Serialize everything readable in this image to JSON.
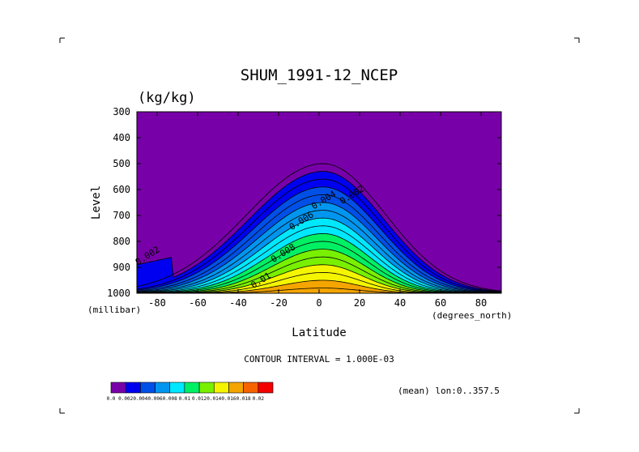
{
  "chart_data": {
    "type": "contour",
    "title": "SHUM_1991-12_NCEP",
    "units": "(kg/kg)",
    "xlabel": "Latitude",
    "ylabel": "Level",
    "x_unit_label": "(degrees_north)",
    "y_unit_label": "(millibar)",
    "xlim": [
      -90,
      90
    ],
    "ylim": [
      1000,
      300
    ],
    "x_ticks": [
      "-80",
      "-60",
      "-40",
      "-20",
      "0",
      "20",
      "40",
      "60",
      "80"
    ],
    "x_tick_values": [
      -80,
      -60,
      -40,
      -20,
      0,
      20,
      40,
      60,
      80
    ],
    "y_ticks": [
      "300",
      "400",
      "500",
      "600",
      "700",
      "800",
      "900",
      "1000"
    ],
    "y_tick_values": [
      300,
      400,
      500,
      600,
      700,
      800,
      900,
      1000
    ],
    "contour_interval_text": "CONTOUR INTERVAL = 1.000E-03",
    "mean_text": "(mean) lon:0..357.5",
    "contour_labels": [
      {
        "text": "0.002",
        "lat": 17,
        "level": 630
      },
      {
        "text": "0.002",
        "lat": -84,
        "level": 865
      },
      {
        "text": "0.004",
        "lat": 3,
        "level": 650
      },
      {
        "text": "0.006",
        "lat": -8,
        "level": 730
      },
      {
        "text": "0.008",
        "lat": -17,
        "level": 855
      },
      {
        "text": "0.01",
        "lat": -28,
        "level": 960
      }
    ],
    "colorbar": {
      "labels": [
        "0.0",
        "0.002",
        "0.004",
        "0.006",
        "0.008",
        "0.01",
        "0.012",
        "0.014",
        "0.016",
        "0.018",
        "0.02"
      ],
      "colors": [
        "#7800a8",
        "#0000f0",
        "#0050e8",
        "#0096f0",
        "#00e8ff",
        "#00f064",
        "#78f000",
        "#f5f500",
        "#f5a500",
        "#f56400",
        "#f50000"
      ]
    },
    "field": {
      "shape": "hump-shaped humidity maximum at surface near equator, decreasing poleward and with height"
    }
  }
}
